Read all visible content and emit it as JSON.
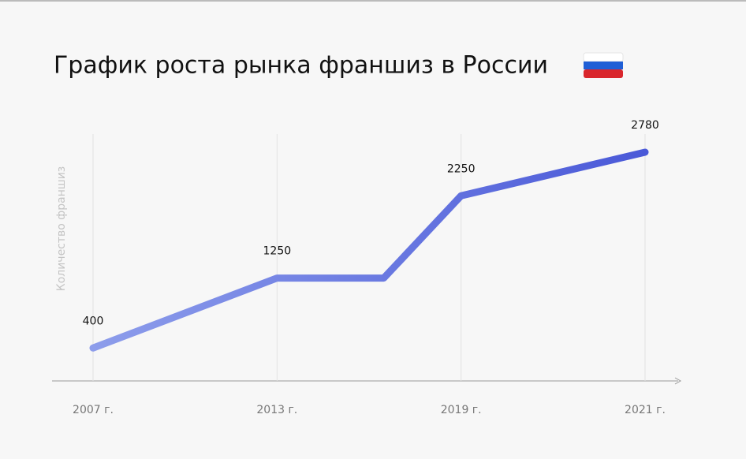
{
  "chart_data": {
    "type": "line",
    "title": "График роста рынка франшиз в России",
    "y_label": "Количество франшиз",
    "categories": [
      "2007 г.",
      "2013 г.",
      null,
      "2019 г.",
      "2021 г."
    ],
    "values": [
      400,
      1250,
      1250,
      2250,
      2780
    ],
    "line_gradient": [
      "#8d9deb",
      "#4a59d8"
    ],
    "ylim": [
      0,
      3000
    ],
    "grid": true
  }
}
